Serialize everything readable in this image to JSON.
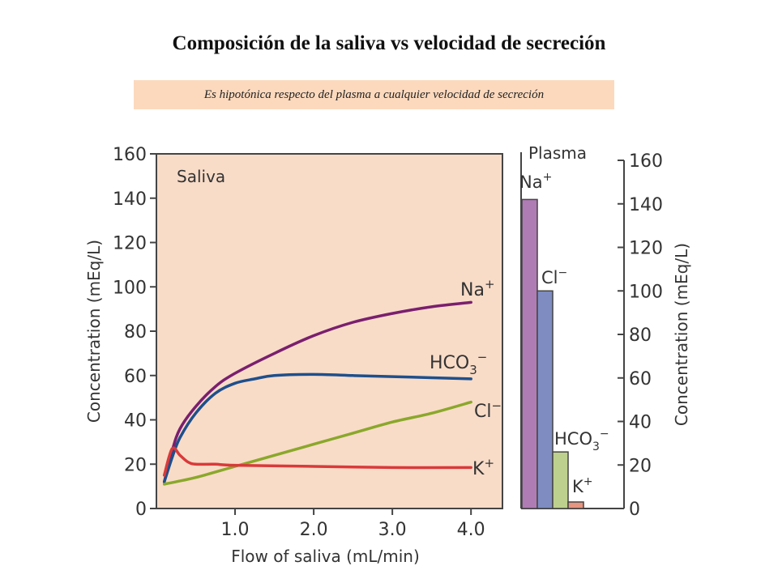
{
  "page": {
    "title": "Composición de la saliva vs velocidad de secreción",
    "subtitle": "Es hipotónica respecto del plasma a cualquier velocidad de secreción"
  },
  "chart_data": [
    {
      "type": "line",
      "panel_label": "Saliva",
      "xlabel": "Flow of saliva (mL/min)",
      "ylabel": "Concentration (mEq/L)",
      "xlim": [
        0,
        4.4
      ],
      "ylim": [
        0,
        160
      ],
      "x_ticks": [
        "1.0",
        "2.0",
        "3.0",
        "4.0"
      ],
      "y_ticks": [
        "0",
        "20",
        "40",
        "60",
        "80",
        "100",
        "120",
        "140",
        "160"
      ],
      "background": "#f8dcc8",
      "series": [
        {
          "name": "Na",
          "superscript": "+",
          "color": "#7a1f6e",
          "x": [
            0.1,
            0.2,
            0.3,
            0.5,
            0.75,
            1.0,
            1.5,
            2.0,
            2.5,
            3.0,
            3.5,
            4.0
          ],
          "y": [
            12,
            26,
            36,
            46,
            55,
            61,
            70,
            78,
            84,
            88,
            91,
            93
          ]
        },
        {
          "name": "HCO",
          "subscript": "3",
          "superscript": "−",
          "color": "#1e4f8c",
          "x": [
            0.1,
            0.2,
            0.3,
            0.5,
            0.75,
            1.0,
            1.25,
            1.5,
            2.0,
            2.5,
            3.0,
            3.5,
            4.0
          ],
          "y": [
            12,
            23,
            32,
            43,
            52,
            56.5,
            58.5,
            60,
            60.5,
            60,
            59.5,
            59,
            58.5
          ]
        },
        {
          "name": "Cl",
          "superscript": "−",
          "color": "#8aa82a",
          "x": [
            0.1,
            0.5,
            1.0,
            1.5,
            2.0,
            2.5,
            3.0,
            3.5,
            4.0
          ],
          "y": [
            11,
            14,
            19,
            24,
            29,
            34,
            39,
            43,
            48
          ]
        },
        {
          "name": "K",
          "superscript": "+",
          "color": "#d93a3a",
          "x": [
            0.1,
            0.2,
            0.3,
            0.4,
            0.5,
            0.75,
            1.0,
            2.0,
            3.0,
            4.0
          ],
          "y": [
            15,
            27,
            24,
            21,
            20,
            20,
            19.5,
            19,
            18.5,
            18.5
          ]
        }
      ]
    },
    {
      "type": "bar",
      "panel_label": "Plasma",
      "ylabel": "Concentration (mEq/L)",
      "ylim": [
        0,
        160
      ],
      "y_ticks": [
        "0",
        "20",
        "40",
        "60",
        "80",
        "100",
        "120",
        "140",
        "160"
      ],
      "bars": [
        {
          "name": "Na",
          "superscript": "+",
          "value": 142,
          "color": "#b07cb4"
        },
        {
          "name": "Cl",
          "superscript": "−",
          "value": 100,
          "color": "#7e8cc2"
        },
        {
          "name": "HCO",
          "subscript": "3",
          "superscript": "−",
          "value": 26,
          "color": "#bdd08e"
        },
        {
          "name": "K",
          "superscript": "+",
          "value": 3,
          "color": "#e69580"
        }
      ]
    }
  ]
}
